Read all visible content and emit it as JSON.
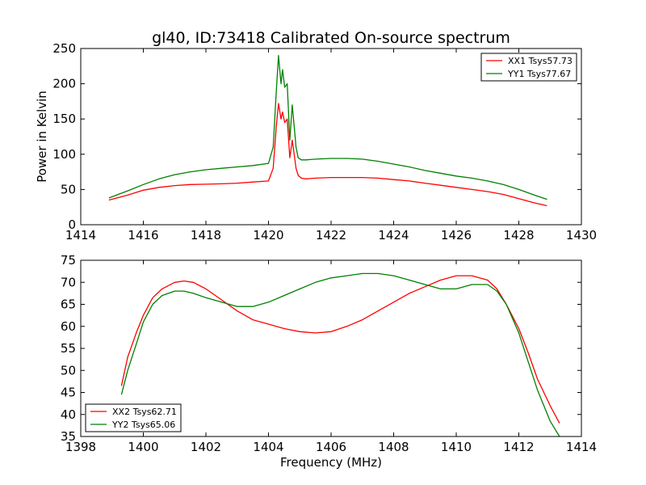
{
  "chart_data": [
    {
      "type": "line",
      "title": "gl40, ID:73418 Calibrated On-source spectrum",
      "xlabel": "",
      "ylabel": "Power in Kelvin",
      "xlim": [
        1414,
        1430
      ],
      "ylim": [
        0,
        250
      ],
      "xticks": [
        "1414",
        "1416",
        "1418",
        "1420",
        "1422",
        "1424",
        "1426",
        "1428",
        "1430"
      ],
      "yticks": [
        "0",
        "50",
        "100",
        "150",
        "200",
        "250"
      ],
      "grid": false,
      "legend": "top-right",
      "series": [
        {
          "name": "XX1 Tsys57.73",
          "color": "#ff0000",
          "x": [
            1414.9,
            1415.5,
            1416.0,
            1416.5,
            1417.0,
            1417.5,
            1418.0,
            1418.5,
            1419.0,
            1419.5,
            1420.0,
            1420.15,
            1420.25,
            1420.32,
            1420.4,
            1420.45,
            1420.52,
            1420.6,
            1420.68,
            1420.76,
            1420.82,
            1420.88,
            1420.95,
            1421.05,
            1421.2,
            1421.5,
            1422.0,
            1422.5,
            1423.0,
            1423.5,
            1424.0,
            1424.5,
            1425.0,
            1425.5,
            1426.0,
            1426.5,
            1427.0,
            1427.5,
            1428.0,
            1428.5,
            1428.9
          ],
          "values": [
            35,
            42,
            49,
            53,
            55.5,
            57,
            57.5,
            58,
            59,
            60.5,
            62,
            80,
            140,
            172,
            150,
            160,
            145,
            150,
            95,
            120,
            100,
            80,
            70,
            66,
            65,
            66,
            67,
            67,
            67,
            66,
            64,
            62,
            59,
            56,
            53,
            50,
            47,
            43,
            37,
            31,
            27
          ]
        },
        {
          "name": "YY1 Tsys77.67",
          "color": "#008000",
          "x": [
            1414.9,
            1415.5,
            1416.0,
            1416.5,
            1417.0,
            1417.5,
            1418.0,
            1418.5,
            1419.0,
            1419.5,
            1420.0,
            1420.15,
            1420.25,
            1420.32,
            1420.4,
            1420.45,
            1420.52,
            1420.6,
            1420.68,
            1420.76,
            1420.82,
            1420.88,
            1420.95,
            1421.05,
            1421.2,
            1421.5,
            1422.0,
            1422.5,
            1423.0,
            1423.5,
            1424.0,
            1424.5,
            1425.0,
            1425.5,
            1426.0,
            1426.5,
            1427.0,
            1427.5,
            1428.0,
            1428.5,
            1428.9
          ],
          "values": [
            38,
            48,
            57,
            65,
            71,
            75,
            78,
            80,
            82,
            84,
            87,
            110,
            190,
            240,
            200,
            220,
            195,
            200,
            120,
            170,
            140,
            110,
            95,
            92,
            92,
            93,
            94,
            94,
            93,
            90,
            86,
            82,
            77,
            73,
            69,
            66,
            62,
            57,
            50,
            42,
            36
          ]
        }
      ]
    },
    {
      "type": "line",
      "title": "",
      "xlabel": "Frequency (MHz)",
      "ylabel": "",
      "xlim": [
        1398,
        1414
      ],
      "ylim": [
        35,
        75
      ],
      "xticks": [
        "1398",
        "1400",
        "1402",
        "1404",
        "1406",
        "1408",
        "1410",
        "1412",
        "1414"
      ],
      "yticks": [
        "35",
        "40",
        "45",
        "50",
        "55",
        "60",
        "65",
        "70",
        "75"
      ],
      "grid": false,
      "legend": "bottom-left",
      "series": [
        {
          "name": "XX2 Tsys62.71",
          "color": "#ff0000",
          "x": [
            1399.3,
            1399.5,
            1399.8,
            1400.0,
            1400.3,
            1400.6,
            1401.0,
            1401.3,
            1401.6,
            1402.0,
            1402.5,
            1403.0,
            1403.5,
            1404.0,
            1404.5,
            1405.0,
            1405.5,
            1406.0,
            1406.5,
            1407.0,
            1407.5,
            1408.0,
            1408.5,
            1409.0,
            1409.5,
            1410.0,
            1410.5,
            1411.0,
            1411.3,
            1411.6,
            1412.0,
            1412.3,
            1412.6,
            1413.0,
            1413.3
          ],
          "values": [
            46.5,
            53,
            59,
            62.5,
            66.5,
            68.5,
            70,
            70.3,
            70,
            68.5,
            66,
            63.5,
            61.5,
            60.5,
            59.5,
            58.8,
            58.5,
            58.8,
            60,
            61.5,
            63.5,
            65.5,
            67.5,
            69,
            70.5,
            71.5,
            71.5,
            70.5,
            68.5,
            65,
            59.5,
            54,
            48,
            42,
            38
          ]
        },
        {
          "name": "YY2 Tsys65.06",
          "color": "#008000",
          "x": [
            1399.3,
            1399.5,
            1399.8,
            1400.0,
            1400.3,
            1400.6,
            1401.0,
            1401.3,
            1401.6,
            1402.0,
            1402.5,
            1403.0,
            1403.5,
            1404.0,
            1404.5,
            1405.0,
            1405.5,
            1406.0,
            1406.5,
            1407.0,
            1407.5,
            1408.0,
            1408.5,
            1409.0,
            1409.5,
            1410.0,
            1410.5,
            1411.0,
            1411.3,
            1411.6,
            1412.0,
            1412.3,
            1412.6,
            1413.0,
            1413.3
          ],
          "values": [
            44.5,
            50,
            56.5,
            61,
            65,
            67,
            68,
            68,
            67.5,
            66.5,
            65.5,
            64.5,
            64.5,
            65.5,
            67,
            68.5,
            70,
            71,
            71.5,
            72,
            72,
            71.5,
            70.5,
            69.5,
            68.5,
            68.5,
            69.5,
            69.5,
            68,
            65,
            58.5,
            52,
            45.5,
            38.5,
            35
          ]
        }
      ]
    }
  ]
}
